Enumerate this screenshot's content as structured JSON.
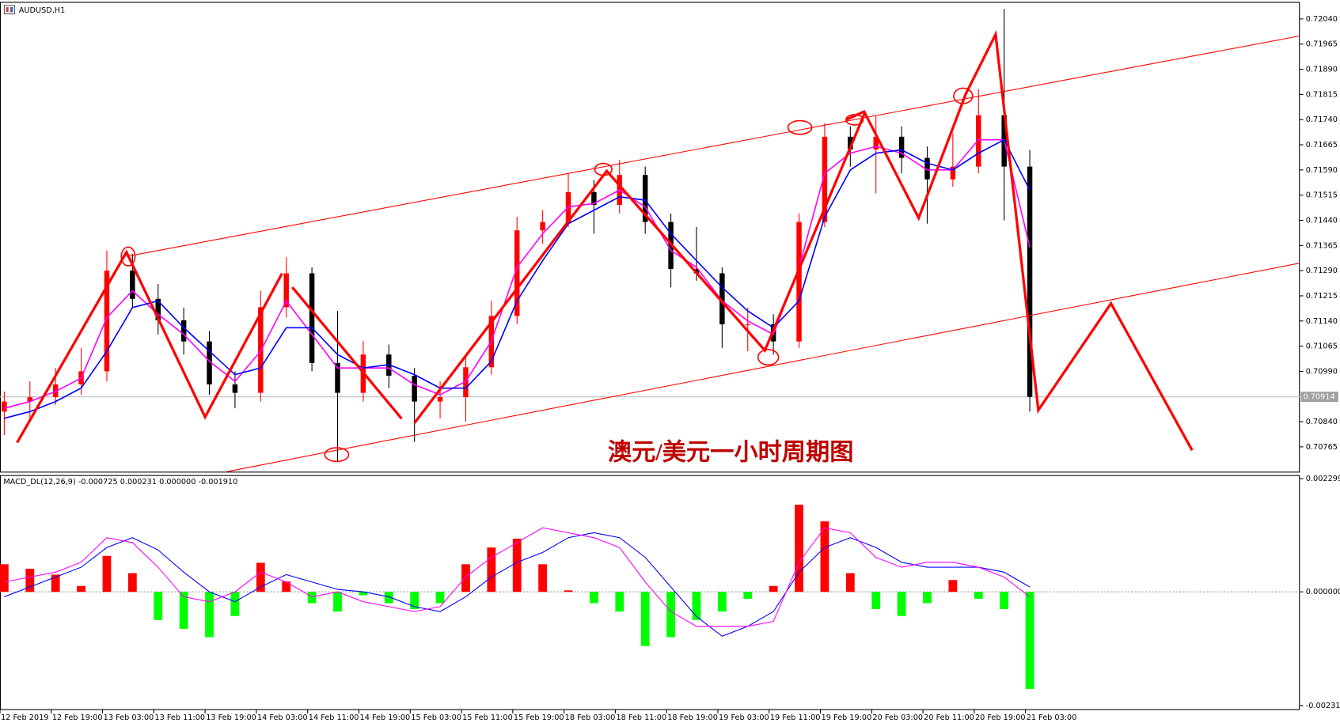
{
  "chart_data": [
    {
      "type": "candlestick",
      "title": "AUDUSD,H1",
      "annotation": "澳元/美元一小时周期图",
      "categories": [
        "12 Feb 2019",
        null,
        "12 Feb 19:00",
        null,
        "13 Feb 03:00",
        null,
        "13 Feb 11:00",
        null,
        "13 Feb 19:00",
        null,
        "14 Feb 03:00",
        null,
        "14 Feb 11:00",
        null,
        "14 Feb 19:00",
        null,
        "15 Feb 03:00",
        null,
        "15 Feb 11:00",
        null,
        "15 Feb 19:00",
        null,
        "18 Feb 03:00",
        null,
        "18 Feb 11:00",
        null,
        "18 Feb 19:00",
        null,
        "19 Feb 03:00",
        null,
        "19 Feb 11:00",
        null,
        "19 Feb 19:00",
        null,
        "20 Feb 03:00",
        null,
        "20 Feb 11:00",
        null,
        "20 Feb 19:00",
        null,
        "21 Feb 03:00"
      ],
      "open": [
        0.7087,
        0.709,
        0.70913,
        0.70951,
        0.7099,
        0.7129,
        0.71206,
        0.71142,
        0.71079,
        0.70951,
        0.70926,
        0.71181,
        0.71282,
        0.71015,
        0.70926,
        0.7104,
        0.70977,
        0.709,
        0.70913,
        0.71002,
        0.71155,
        0.7141,
        0.71435,
        0.71524,
        0.71486,
        0.71575,
        0.71435,
        0.71295,
        0.71282,
        0.7113,
        0.7113,
        0.71079,
        0.71435,
        0.71689,
        0.71651,
        0.71689,
        0.71626,
        0.71562,
        0.716,
        0.71753,
        0.716
      ],
      "high": [
        0.7093,
        0.7096,
        0.71,
        0.7106,
        0.7135,
        0.7134,
        0.7125,
        0.7118,
        0.7111,
        0.7099,
        0.7123,
        0.7133,
        0.713,
        0.7117,
        0.7108,
        0.7107,
        0.71,
        0.7096,
        0.7104,
        0.712,
        0.7145,
        0.7147,
        0.7158,
        0.7156,
        0.7162,
        0.716,
        0.7146,
        0.7142,
        0.713,
        0.7118,
        0.7116,
        0.7146,
        0.7173,
        0.7172,
        0.7175,
        0.7172,
        0.7166,
        0.717,
        0.7183,
        0.7207,
        0.7165
      ],
      "low": [
        0.708,
        0.7085,
        0.7089,
        0.7092,
        0.7096,
        0.7118,
        0.711,
        0.7104,
        0.7092,
        0.7088,
        0.709,
        0.7115,
        0.7099,
        0.7072,
        0.709,
        0.7094,
        0.7078,
        0.7085,
        0.7084,
        0.7098,
        0.7113,
        0.7137,
        0.7142,
        0.714,
        0.7146,
        0.714,
        0.7124,
        0.7126,
        0.7106,
        0.7105,
        0.7104,
        0.7106,
        0.7142,
        0.716,
        0.7152,
        0.7158,
        0.7143,
        0.7154,
        0.7158,
        0.7144,
        0.7087
      ],
      "close": [
        0.709,
        0.70913,
        0.70951,
        0.7099,
        0.7129,
        0.71206,
        0.71142,
        0.71079,
        0.70951,
        0.70926,
        0.71181,
        0.71282,
        0.71015,
        0.70926,
        0.7104,
        0.70977,
        0.709,
        0.70913,
        0.71002,
        0.71155,
        0.7141,
        0.71435,
        0.71524,
        0.71486,
        0.71575,
        0.71435,
        0.71295,
        0.71282,
        0.7113,
        0.7113,
        0.71079,
        0.71435,
        0.71689,
        0.71651,
        0.71689,
        0.71626,
        0.71562,
        0.716,
        0.71753,
        0.716,
        0.70914
      ],
      "up_color": "#ff0000",
      "down_color": "#000000",
      "series": [
        {
          "color": "#ff00ff",
          "values": [
            0.7088,
            0.709,
            0.7093,
            0.7097,
            0.7115,
            0.7123,
            0.7116,
            0.711,
            0.7102,
            0.7096,
            0.7105,
            0.712,
            0.711,
            0.71,
            0.71,
            0.71,
            0.7095,
            0.7092,
            0.7096,
            0.7108,
            0.713,
            0.714,
            0.7148,
            0.7149,
            0.7153,
            0.7148,
            0.7135,
            0.713,
            0.712,
            0.7114,
            0.711,
            0.713,
            0.7158,
            0.7164,
            0.7166,
            0.7164,
            0.7159,
            0.7159,
            0.7168,
            0.7168,
            0.7136
          ]
        },
        {
          "color": "#0000ff",
          "values": [
            0.7085,
            0.7087,
            0.709,
            0.7094,
            0.7105,
            0.7118,
            0.712,
            0.7112,
            0.7105,
            0.7098,
            0.71,
            0.7112,
            0.7112,
            0.7104,
            0.71,
            0.7101,
            0.7098,
            0.7094,
            0.7094,
            0.7102,
            0.712,
            0.7132,
            0.7143,
            0.7147,
            0.7151,
            0.715,
            0.714,
            0.7132,
            0.7124,
            0.7117,
            0.7112,
            0.712,
            0.7145,
            0.7159,
            0.7164,
            0.7165,
            0.7161,
            0.7159,
            0.7164,
            0.7168,
            0.7153
          ]
        }
      ],
      "ylim": [
        0.70691,
        0.72083
      ],
      "yticks": [
        {
          "value": 0.7204,
          "label": "0.72040"
        },
        {
          "value": 0.71965,
          "label": "0.71965"
        },
        {
          "value": 0.7189,
          "label": "0.71890"
        },
        {
          "value": 0.71815,
          "label": "0.71815"
        },
        {
          "value": 0.7174,
          "label": "0.71740"
        },
        {
          "value": 0.71665,
          "label": "0.71665"
        },
        {
          "value": 0.7159,
          "label": "0.71590"
        },
        {
          "value": 0.71515,
          "label": "0.71515"
        },
        {
          "value": 0.7144,
          "label": "0.71440"
        },
        {
          "value": 0.71365,
          "label": "0.71365"
        },
        {
          "value": 0.7129,
          "label": "0.71290"
        },
        {
          "value": 0.71215,
          "label": "0.71215"
        },
        {
          "value": 0.7114,
          "label": "0.71140"
        },
        {
          "value": 0.71065,
          "label": "0.71065"
        },
        {
          "value": 0.7099,
          "label": "0.70990"
        },
        {
          "value": 0.7084,
          "label": "0.70840"
        },
        {
          "value": 0.70765,
          "label": "0.70765"
        }
      ],
      "price_line": {
        "value": 0.70914,
        "label": "0.70914"
      }
    },
    {
      "type": "macd",
      "title": "MACD_DL(12,26,9) -0.000725 0.000231 0.000000 -0.001910",
      "values": [
        0.00056,
        0.00047,
        0.00035,
        0.00012,
        0.00073,
        0.00038,
        -0.00057,
        -0.00075,
        -0.00092,
        -0.00049,
        0.00059,
        0.00021,
        -0.00023,
        -0.0004,
        -7e-05,
        -0.00023,
        -0.00035,
        -0.00023,
        0.00056,
        0.0009,
        0.00108,
        0.00056,
        3e-05,
        -0.00023,
        -0.0004,
        -0.0011,
        -0.00092,
        -0.00057,
        -0.0004,
        -0.00014,
        0.00012,
        0.00177,
        0.00143,
        0.00038,
        -0.00035,
        -0.00049,
        -0.00023,
        0.00024,
        -0.00014,
        -0.00035,
        -0.00197
      ],
      "pos_color": "#ff0000",
      "neg_color": "#00ff00",
      "series": [
        {
          "color": "#0000ff",
          "values": [
            -0.0001,
            0.0001,
            0.0003,
            0.0005,
            0.0009,
            0.0011,
            0.00085,
            0.0004,
            0,
            -0.0002,
            0.0001,
            0.00035,
            0.0002,
            5e-05,
            0,
            -0.0001,
            -0.0003,
            -0.0004,
            -0.0001,
            0.0003,
            0.0006,
            0.0008,
            0.0011,
            0.0012,
            0.0011,
            0.0007,
            0.0001,
            -0.0005,
            -0.0009,
            -0.0007,
            -0.0004,
            0.0004,
            0.0009,
            0.0011,
            0.0009,
            0.0006,
            0.0005,
            0.0005,
            0.0005,
            0.0004,
            0.0001
          ]
        },
        {
          "color": "#ff00ff",
          "values": [
            0.0002,
            0.0003,
            0.0004,
            0.0006,
            0.0011,
            0.001,
            0.0005,
            -0.0001,
            -0.0002,
            0,
            0.0004,
            0.0002,
            -0.0001,
            0,
            -0.0002,
            -0.0003,
            -0.0004,
            -0.0003,
            0.0003,
            0.0007,
            0.001,
            0.0013,
            0.0012,
            0.0011,
            0.0009,
            0.0002,
            -0.0004,
            -0.0007,
            -0.0007,
            -0.0007,
            -0.0006,
            0.0006,
            0.0013,
            0.0012,
            0.0007,
            0.0005,
            0.0006,
            0.0006,
            0.0005,
            0.0003,
            -0.0001
          ]
        }
      ],
      "ylim": [
        -0.00238,
        0.00237
      ],
      "yticks": [
        0.002299,
        {
          "value": 0,
          "label": "0.000000"
        },
        {
          "value": -0.00231,
          "label": "-0.002310"
        }
      ],
      "zero_line": true
    }
  ]
}
